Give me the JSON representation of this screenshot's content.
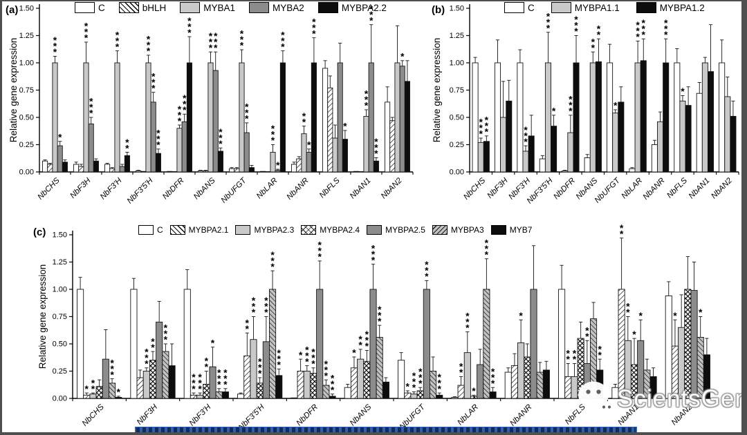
{
  "watermark": {
    "text": "ScientsGene",
    "icon": "wechat-icon"
  },
  "decor": {
    "frame_color": "#4f4f4f",
    "caption_highlight_color": "#2e5fae",
    "bar_colors": {
      "white": "#ffffff",
      "lightgray": "#c9c9c9",
      "midgray": "#8c8c8c",
      "black": "#0d0d0d"
    }
  },
  "chart_data": [
    {
      "id": "a",
      "type": "bar",
      "panel_label": "(a)",
      "ylabel": "Relative gene expression",
      "ymax": 1.5,
      "yticks": [
        "0.00",
        "0.25",
        "0.50",
        "0.75",
        "1.00",
        "1.25",
        "1.50"
      ],
      "grid": false,
      "legend_position": "top",
      "categories": [
        "NbCHS",
        "NbF3H",
        "NbF3'H",
        "NbF3'5'H",
        "NbDFR",
        "NbANS",
        "NbUFGT",
        "NbLAR",
        "NbANR",
        "NbFLS",
        "NbAN1",
        "NbAN2"
      ],
      "series": [
        {
          "name": "C",
          "style": "white",
          "values": [
            0.1,
            0.07,
            0.07,
            0.01,
            0.005,
            0.01,
            0.03,
            0.005,
            0.07,
            0.95,
            0.005,
            0.64
          ],
          "errors": [
            0.01,
            0.02,
            0.01,
            0.005,
            0.003,
            0.005,
            0.01,
            0.002,
            0.02,
            0.07,
            0.002,
            0.14
          ],
          "sig": [
            "",
            "",
            "",
            "",
            "",
            "",
            "",
            "",
            "",
            "",
            "",
            ""
          ]
        },
        {
          "name": "bHLH",
          "style": "hatch",
          "values": [
            0.07,
            0.05,
            0.03,
            0.005,
            0.003,
            0.01,
            0.03,
            0.003,
            0.12,
            0.77,
            0.003,
            0.47
          ],
          "errors": [
            0.01,
            0.02,
            0.01,
            0.003,
            0.002,
            0.005,
            0.01,
            0.001,
            0.02,
            0.11,
            0.001,
            0.03
          ],
          "sig": [
            "",
            "",
            "",
            "",
            "",
            "",
            "",
            "",
            "",
            "",
            "",
            ""
          ]
        },
        {
          "name": "MYBA1",
          "style": "lightgray",
          "values": [
            1.0,
            1.0,
            1.0,
            1.0,
            0.4,
            1.0,
            1.0,
            0.18,
            0.35,
            0.31,
            0.51,
            1.0
          ],
          "errors": [
            0.06,
            0.19,
            0.11,
            0.07,
            0.03,
            0.1,
            0.12,
            0.07,
            0.07,
            0.12,
            0.06,
            0.34
          ],
          "sig": [
            "***",
            "***",
            "***",
            "***",
            "***",
            "***",
            "***",
            "***",
            "**",
            "",
            "***",
            ""
          ]
        },
        {
          "name": "MYBA2",
          "style": "midgray",
          "values": [
            0.24,
            0.44,
            0.05,
            0.64,
            0.46,
            0.93,
            0.36,
            0.015,
            0.18,
            1.0,
            1.0,
            0.97
          ],
          "errors": [
            0.04,
            0.06,
            0.02,
            0.09,
            0.07,
            0.17,
            0.09,
            0.01,
            0.03,
            0.18,
            0.35,
            0.05
          ],
          "sig": [
            "*",
            "***",
            "",
            "***",
            "***",
            "***",
            "***",
            "*",
            "*",
            "",
            "***",
            "*"
          ]
        },
        {
          "name": "MYBPA2.2",
          "style": "black",
          "values": [
            0.09,
            0.1,
            0.15,
            0.17,
            1.0,
            0.19,
            0.04,
            1.0,
            1.0,
            0.3,
            0.1,
            0.83
          ],
          "errors": [
            0.02,
            0.02,
            0.03,
            0.04,
            0.24,
            0.03,
            0.02,
            0.11,
            0.23,
            0.08,
            0.03,
            0.19
          ],
          "sig": [
            "",
            "",
            "**",
            "***",
            "***",
            "***",
            "",
            "***",
            "***",
            "*",
            "***",
            ""
          ]
        }
      ]
    },
    {
      "id": "b",
      "type": "bar",
      "panel_label": "(b)",
      "ylabel": "Relative gene expression",
      "ymax": 1.5,
      "yticks": [
        "0.00",
        "0.25",
        "0.50",
        "0.75",
        "1.00",
        "1.25",
        "1.50"
      ],
      "grid": false,
      "legend_position": "top",
      "categories": [
        "NbCHS",
        "NbF3H",
        "NbF3'H",
        "NbF3'5'H",
        "NbDFR",
        "NbANS",
        "NbUFGT",
        "NbLAR",
        "NbANR",
        "NbFLS",
        "NbAN1",
        "NbAN2"
      ],
      "series": [
        {
          "name": "C",
          "style": "white",
          "values": [
            1.0,
            1.0,
            1.0,
            0.12,
            0.01,
            0.13,
            1.0,
            0.03,
            0.25,
            1.0,
            0.72,
            1.0
          ],
          "errors": [
            0.05,
            0.21,
            0.12,
            0.03,
            0.005,
            0.03,
            0.17,
            0.01,
            0.04,
            0.13,
            0.1,
            0.21
          ],
          "sig": [
            "",
            "",
            "",
            "",
            "",
            "",
            "",
            "",
            "",
            "",
            "",
            ""
          ]
        },
        {
          "name": "MYBPA1.1",
          "style": "lightgray",
          "values": [
            0.27,
            0.5,
            0.19,
            1.0,
            0.36,
            1.0,
            0.54,
            1.0,
            0.46,
            0.65,
            1.0,
            0.69
          ],
          "errors": [
            0.04,
            0.33,
            0.05,
            0.28,
            0.16,
            0.1,
            0.03,
            0.2,
            0.09,
            0.05,
            0.05,
            0.18
          ],
          "sig": [
            "***",
            "",
            "***",
            "***",
            "***",
            "**",
            "*",
            "***",
            "",
            "*",
            "",
            ""
          ]
        },
        {
          "name": "MYBPA1.2",
          "style": "black",
          "values": [
            0.28,
            0.65,
            0.33,
            0.42,
            1.0,
            1.01,
            0.64,
            1.02,
            1.0,
            0.61,
            0.92,
            0.51
          ],
          "errors": [
            0.05,
            0.19,
            0.19,
            0.1,
            0.25,
            0.21,
            0.14,
            0.2,
            0.22,
            0.17,
            0.43,
            0.14
          ],
          "sig": [
            "***",
            "",
            "",
            "*",
            "***",
            "**",
            "",
            "***",
            "***",
            "",
            "",
            ""
          ]
        }
      ]
    },
    {
      "id": "c",
      "type": "bar",
      "panel_label": "(c)",
      "ylabel": "Relative gene expression",
      "ymax": 1.5,
      "yticks": [
        "0.00",
        "0.25",
        "0.50",
        "0.75",
        "1.00",
        "1.25",
        "1.50"
      ],
      "grid": false,
      "legend_position": "top",
      "categories": [
        "NbCHS",
        "NbF3H",
        "NbF3'H",
        "NbF3'5'H",
        "NbDFR",
        "NbANS",
        "NbUFGT",
        "NbLAR",
        "NbANR",
        "NbFLS",
        "NbAN1",
        "NbAN2"
      ],
      "series": [
        {
          "name": "C",
          "style": "white",
          "values": [
            1.0,
            1.0,
            1.0,
            0.04,
            0.005,
            0.1,
            0.35,
            0.01,
            0.24,
            1.0,
            0.1,
            0.94
          ],
          "errors": [
            0.11,
            0.1,
            0.18,
            0.01,
            0.003,
            0.03,
            0.07,
            0.005,
            0.04,
            0.22,
            0.03,
            0.13
          ],
          "sig": [
            "",
            "",
            "",
            "",
            "",
            "",
            "",
            "",
            "",
            "",
            "",
            ""
          ]
        },
        {
          "name": "MYBPA2.1",
          "style": "hatch",
          "values": [
            0.03,
            0.19,
            0.03,
            0.39,
            0.25,
            0.28,
            0.05,
            0.12,
            0.3,
            0.2,
            1.0,
            0.48
          ],
          "errors": [
            0.02,
            0.07,
            0.02,
            0.21,
            0.11,
            0.1,
            0.02,
            0.08,
            0.11,
            0.12,
            0.47,
            0.24
          ],
          "sig": [
            "*",
            "",
            "***",
            "**",
            "*",
            "*",
            "*",
            "**",
            "",
            "**",
            "**",
            "*"
          ]
        },
        {
          "name": "MYBPA2.3",
          "style": "lightgray",
          "values": [
            0.04,
            0.25,
            0.03,
            0.54,
            0.25,
            0.36,
            0.04,
            0.42,
            0.51,
            0.2,
            0.53,
            0.65
          ],
          "errors": [
            0.01,
            0.03,
            0.02,
            0.21,
            0.05,
            0.09,
            0.02,
            0.19,
            0.21,
            0.12,
            0.22,
            0.3
          ],
          "sig": [
            "**",
            "***",
            "***",
            "***",
            "***",
            "**",
            "***",
            "***",
            "*",
            "**",
            "**",
            ""
          ]
        },
        {
          "name": "MYBPA2.4",
          "style": "cross",
          "values": [
            0.11,
            0.35,
            0.13,
            0.14,
            0.23,
            0.34,
            0.07,
            0.02,
            0.38,
            0.55,
            0.31,
            1.0
          ],
          "errors": [
            0.06,
            0.08,
            0.12,
            0.05,
            0.05,
            0.1,
            0.03,
            0.01,
            0.12,
            0.15,
            0.24,
            0.3
          ],
          "sig": [
            "",
            "**",
            "**",
            "***",
            "***",
            "***",
            "***",
            "*",
            "",
            "",
            "*",
            ""
          ]
        },
        {
          "name": "MYBPA2.5",
          "style": "midgray",
          "values": [
            0.36,
            0.7,
            0.29,
            0.52,
            1.0,
            1.0,
            1.0,
            0.31,
            1.0,
            0.32,
            0.53,
            0.99
          ],
          "errors": [
            0.27,
            0.19,
            0.18,
            0.23,
            0.26,
            0.23,
            0.08,
            0.14,
            0.4,
            0.21,
            0.19,
            0.26
          ],
          "sig": [
            "",
            "",
            "*",
            "***",
            "***",
            "***",
            "***",
            "",
            "",
            "**",
            "*",
            ""
          ]
        },
        {
          "name": "MYBPA3",
          "style": "dense",
          "values": [
            0.14,
            0.43,
            0.06,
            1.0,
            0.12,
            0.56,
            0.25,
            1.0,
            0.24,
            0.73,
            0.26,
            0.56
          ],
          "errors": [
            0.04,
            0.07,
            0.03,
            0.17,
            0.05,
            0.11,
            0.13,
            0.28,
            0.09,
            0.15,
            0.1,
            0.19
          ],
          "sig": [
            "***",
            "***",
            "***",
            "***",
            "***",
            "***",
            "",
            "***",
            "",
            "",
            "",
            "*"
          ]
        },
        {
          "name": "MYB7",
          "style": "black",
          "values": [
            0.01,
            0.3,
            0.06,
            0.21,
            0.02,
            0.15,
            0.03,
            0.06,
            0.26,
            0.26,
            0.2,
            0.4
          ],
          "errors": [
            0.01,
            0.2,
            0.03,
            0.06,
            0.02,
            0.04,
            0.02,
            0.04,
            0.08,
            0.1,
            0.08,
            0.15
          ],
          "sig": [
            "*",
            "",
            "***",
            "***",
            "***",
            "",
            "***",
            "***",
            "",
            "**",
            "",
            ""
          ]
        }
      ]
    }
  ]
}
